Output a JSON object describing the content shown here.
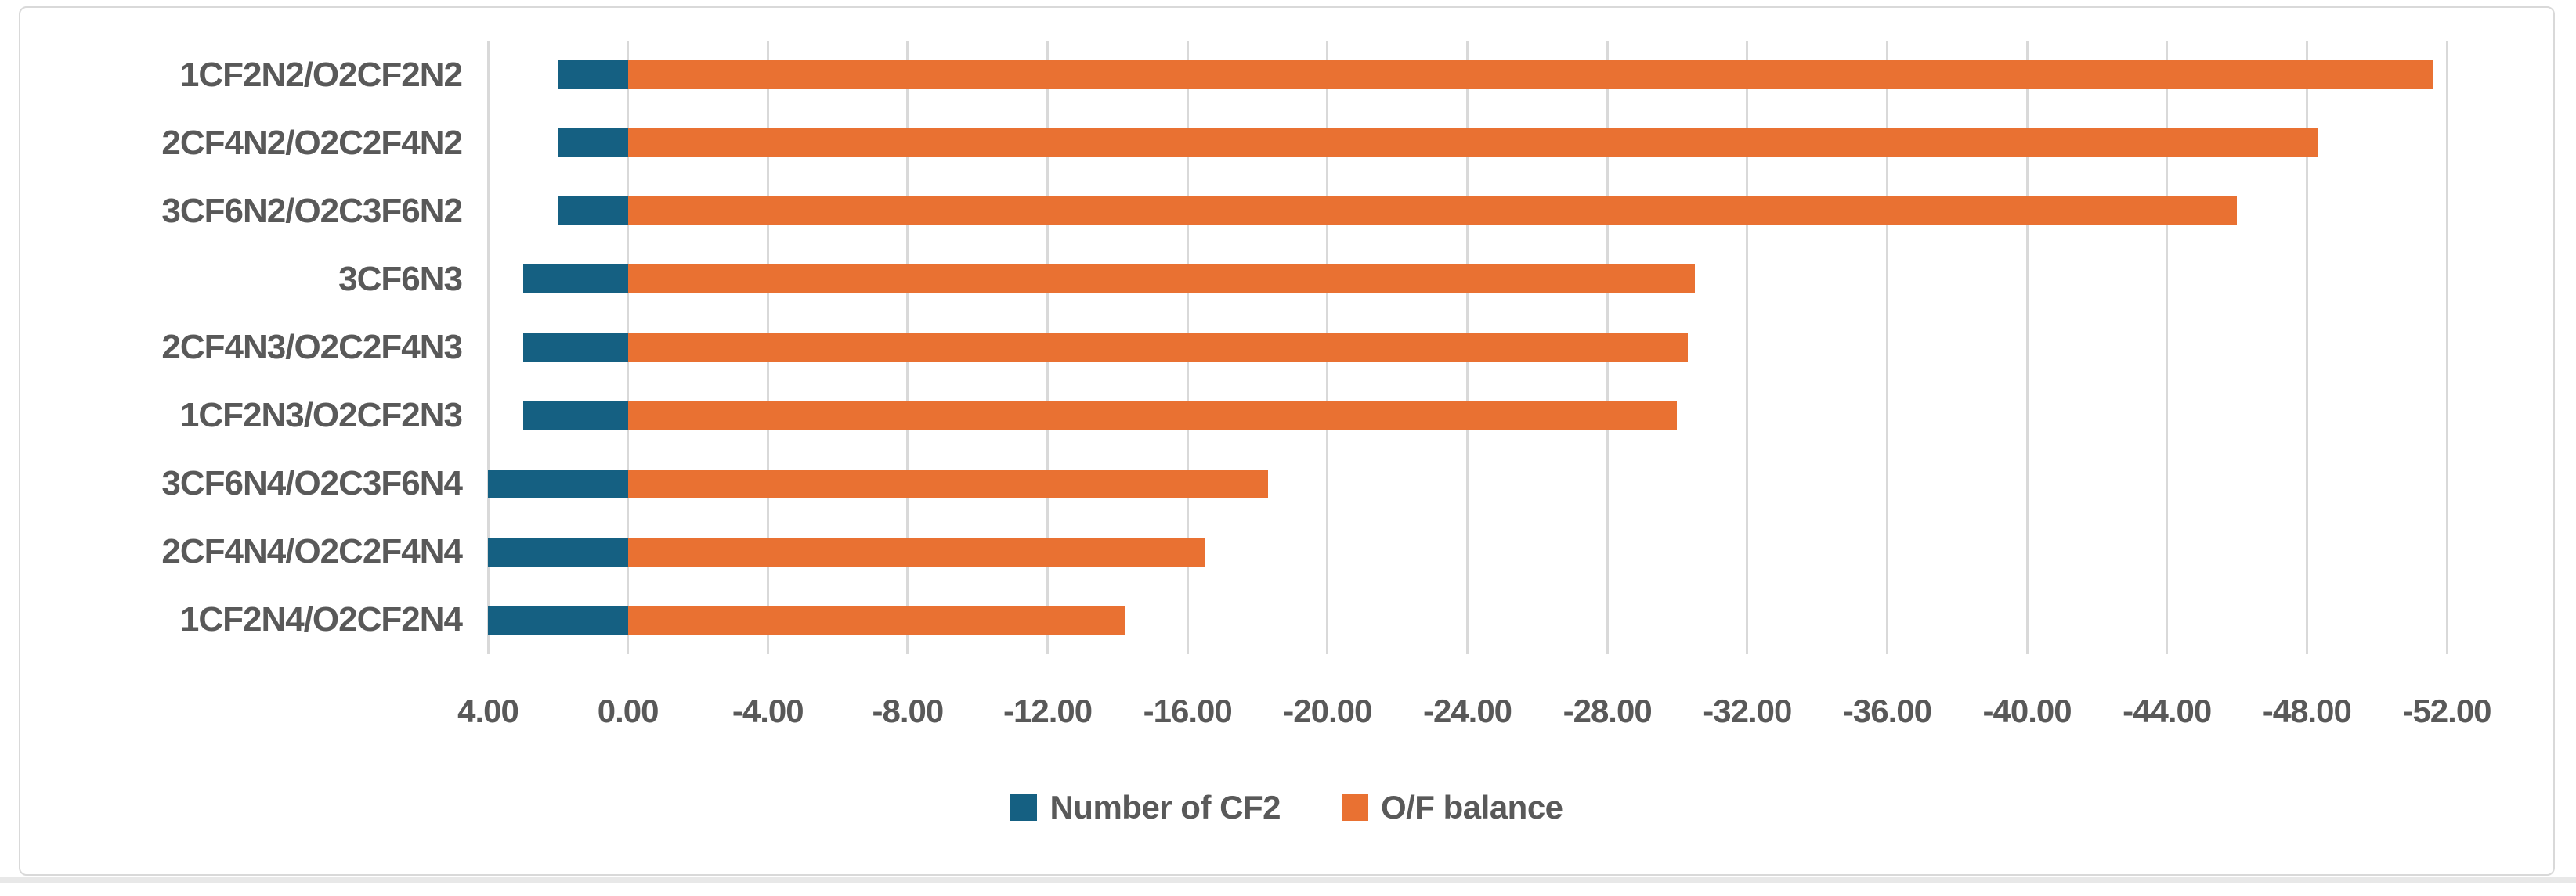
{
  "chart_data": {
    "type": "bar",
    "orientation": "horizontal",
    "title": "",
    "xlabel": "",
    "ylabel": "",
    "axis_reversed": true,
    "xlim": [
      4,
      -52
    ],
    "grid": true,
    "legend_position": "bottom",
    "categories": [
      "1CF2N2/O2CF2N2",
      "2CF4N2/O2C2F4N2",
      "3CF6N2/O2C3F6N2",
      "3CF6N3",
      "2CF4N3/O2C2F4N3",
      "1CF2N3/O2CF2N3",
      "3CF6N4/O2C3F6N4",
      "2CF4N4/O2C2F4N4",
      "1CF2N4/O2CF2N4"
    ],
    "series": [
      {
        "name": "Number of CF2",
        "color": "#156082",
        "values": [
          2,
          2,
          2,
          3,
          3,
          3,
          4,
          4,
          4
        ]
      },
      {
        "name": "O/F balance",
        "color": "#E97132",
        "values": [
          -51.6,
          -48.3,
          -46.0,
          -30.5,
          -30.3,
          -30.0,
          -18.3,
          -16.5,
          -14.2
        ]
      }
    ],
    "x_ticks": [
      4,
      0,
      -4,
      -8,
      -12,
      -16,
      -20,
      -24,
      -28,
      -32,
      -36,
      -40,
      -44,
      -48,
      -52
    ],
    "x_tick_labels": [
      "4.00",
      "0.00",
      "-4.00",
      "-8.00",
      "-12.00",
      "-16.00",
      "-20.00",
      "-24.00",
      "-28.00",
      "-32.00",
      "-36.00",
      "-40.00",
      "-44.00",
      "-48.00",
      "-52.00"
    ]
  },
  "colors": {
    "series1": "#156082",
    "series2": "#E97132",
    "gridline": "#D9D9D9",
    "text": "#595959",
    "frame_border": "#D9D9D9",
    "background": "#ffffff"
  },
  "legend": {
    "item1_label": "Number of CF2",
    "item2_label": "O/F balance"
  }
}
